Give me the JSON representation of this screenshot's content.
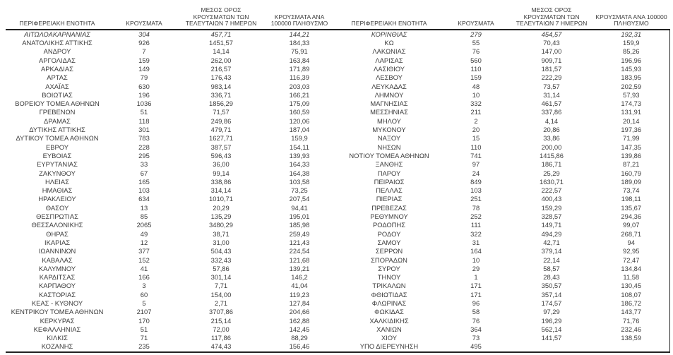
{
  "table": {
    "column_keys": [
      "region",
      "cases",
      "avg-7day",
      "per-100k"
    ],
    "column_headers": [
      "ΠΕΡΙΦΕΡΕΙΑΚΗ ΕΝΟΤΗΤΑ",
      "ΚΡΟΥΣΜΑΤΑ",
      "ΜΕΣΟΣ ΟΡΟΣ ΚΡΟΥΣΜΑΤΩΝ ΤΩΝ ΤΕΛΕΥΤΑΙΩΝ 7 ΗΜΕΡΩΝ",
      "ΚΡΟΥΣΜΑΤΑ ΑΝΑ 100000 ΠΛΗΘΥΣΜΟ"
    ],
    "left_rows": [
      [
        "ΑΙΤΩΛΟΑΚΑΡΝΑΝΙΑΣ",
        "304",
        "457,71",
        "144,21"
      ],
      [
        "ΑΝΑΤΟΛΙΚΗΣ ΑΤΤΙΚΗΣ",
        "926",
        "1451,57",
        "184,33"
      ],
      [
        "ΑΝΔΡΟΥ",
        "7",
        "14,14",
        "75,91"
      ],
      [
        "ΑΡΓΟΛΙΔΑΣ",
        "159",
        "262,00",
        "163,84"
      ],
      [
        "ΑΡΚΑΔΙΑΣ",
        "149",
        "216,57",
        "171,89"
      ],
      [
        "ΑΡΤΑΣ",
        "79",
        "176,43",
        "116,39"
      ],
      [
        "ΑΧΑΪΑΣ",
        "630",
        "983,14",
        "203,03"
      ],
      [
        "ΒΟΙΩΤΙΑΣ",
        "196",
        "336,71",
        "166,21"
      ],
      [
        "ΒΟΡΕΙΟΥ ΤΟΜΕΑ ΑΘΗΝΩΝ",
        "1036",
        "1856,29",
        "175,09"
      ],
      [
        "ΓΡΕΒΕΝΩΝ",
        "51",
        "71,57",
        "160,59"
      ],
      [
        "ΔΡΑΜΑΣ",
        "118",
        "249,86",
        "120,06"
      ],
      [
        "ΔΥΤΙΚΗΣ ΑΤΤΙΚΗΣ",
        "301",
        "479,71",
        "187,04"
      ],
      [
        "ΔΥΤΙΚΟΥ ΤΟΜΕΑ ΑΘΗΝΩΝ",
        "783",
        "1627,71",
        "159,9"
      ],
      [
        "ΕΒΡΟΥ",
        "228",
        "387,57",
        "154,11"
      ],
      [
        "ΕΥΒΟΙΑΣ",
        "295",
        "596,43",
        "139,93"
      ],
      [
        "ΕΥΡΥΤΑΝΙΑΣ",
        "33",
        "36,00",
        "164,33"
      ],
      [
        "ΖΑΚΥΝΘΟΥ",
        "67",
        "99,14",
        "164,38"
      ],
      [
        "ΗΛΕΙΑΣ",
        "165",
        "338,86",
        "103,58"
      ],
      [
        "ΗΜΑΘΙΑΣ",
        "103",
        "314,14",
        "73,25"
      ],
      [
        "ΗΡΑΚΛΕΙΟΥ",
        "634",
        "1010,71",
        "207,54"
      ],
      [
        "ΘΑΣΟΥ",
        "13",
        "20,29",
        "94,41"
      ],
      [
        "ΘΕΣΠΡΩΤΙΑΣ",
        "85",
        "135,29",
        "195,01"
      ],
      [
        "ΘΕΣΣΑΛΟΝΙΚΗΣ",
        "2065",
        "3480,29",
        "185,98"
      ],
      [
        "ΘΗΡΑΣ",
        "49",
        "38,71",
        "259,49"
      ],
      [
        "ΙΚΑΡΙΑΣ",
        "12",
        "31,00",
        "121,43"
      ],
      [
        "ΙΩΑΝΝΙΝΩΝ",
        "377",
        "504,43",
        "224,54"
      ],
      [
        "ΚΑΒΑΛΑΣ",
        "152",
        "332,43",
        "121,68"
      ],
      [
        "ΚΑΛΥΜΝΟΥ",
        "41",
        "57,86",
        "139,21"
      ],
      [
        "ΚΑΡΔΙΤΣΑΣ",
        "166",
        "301,14",
        "146,2"
      ],
      [
        "ΚΑΡΠΑΘΟΥ",
        "3",
        "7,71",
        "41,04"
      ],
      [
        "ΚΑΣΤΟΡΙΑΣ",
        "60",
        "154,00",
        "119,23"
      ],
      [
        "ΚΕΑΣ - ΚΥΘΝΟΥ",
        "5",
        "2,71",
        "127,84"
      ],
      [
        "ΚΕΝΤΡΙΚΟΥ ΤΟΜΕΑ ΑΘΗΝΩΝ",
        "2107",
        "3707,86",
        "204,66"
      ],
      [
        "ΚΕΡΚΥΡΑΣ",
        "170",
        "215,14",
        "162,88"
      ],
      [
        "ΚΕΦΑΛΛΗΝΙΑΣ",
        "51",
        "72,00",
        "142,45"
      ],
      [
        "ΚΙΛΚΙΣ",
        "71",
        "117,86",
        "88,29"
      ],
      [
        "ΚΟΖΑΝΗΣ",
        "235",
        "474,43",
        "156,46"
      ]
    ],
    "right_rows": [
      [
        "ΚΟΡΙΝΘΙΑΣ",
        "279",
        "454,57",
        "192,31"
      ],
      [
        "ΚΩ",
        "55",
        "70,43",
        "159,9"
      ],
      [
        "ΛΑΚΩΝΙΑΣ",
        "76",
        "147,00",
        "85,26"
      ],
      [
        "ΛΑΡΙΣΑΣ",
        "560",
        "909,71",
        "196,96"
      ],
      [
        "ΛΑΣΙΘΙΟΥ",
        "110",
        "181,57",
        "145,93"
      ],
      [
        "ΛΕΣΒΟΥ",
        "159",
        "222,29",
        "183,95"
      ],
      [
        "ΛΕΥΚΑΔΑΣ",
        "48",
        "73,57",
        "202,59"
      ],
      [
        "ΛΗΜΝΟΥ",
        "10",
        "31,14",
        "57,93"
      ],
      [
        "ΜΑΓΝΗΣΙΑΣ",
        "332",
        "461,57",
        "174,73"
      ],
      [
        "ΜΕΣΣΗΝΙΑΣ",
        "211",
        "337,86",
        "131,91"
      ],
      [
        "ΜΗΛΟΥ",
        "2",
        "4,14",
        "20,14"
      ],
      [
        "ΜΥΚΟΝΟΥ",
        "20",
        "20,86",
        "197,36"
      ],
      [
        "ΝΑΞΟΥ",
        "15",
        "33,86",
        "71,99"
      ],
      [
        "ΝΗΣΩΝ",
        "110",
        "200,00",
        "147,35"
      ],
      [
        "ΝΟΤΙΟΥ ΤΟΜΕΑ ΑΘΗΝΩΝ",
        "741",
        "1415,86",
        "139,86"
      ],
      [
        "ΞΑΝΘΗΣ",
        "97",
        "186,71",
        "87,21"
      ],
      [
        "ΠΑΡΟΥ",
        "24",
        "25,29",
        "160,79"
      ],
      [
        "ΠΕΙΡΑΙΩΣ",
        "849",
        "1630,71",
        "189,09"
      ],
      [
        "ΠΕΛΛΑΣ",
        "103",
        "222,57",
        "73,74"
      ],
      [
        "ΠΙΕΡΙΑΣ",
        "251",
        "400,43",
        "198,11"
      ],
      [
        "ΠΡΕΒΕΖΑΣ",
        "78",
        "159,29",
        "135,67"
      ],
      [
        "ΡΕΘΥΜΝΟΥ",
        "252",
        "328,57",
        "294,36"
      ],
      [
        "ΡΟΔΟΠΗΣ",
        "111",
        "149,71",
        "99,07"
      ],
      [
        "ΡΟΔΟΥ",
        "322",
        "494,29",
        "268,71"
      ],
      [
        "ΣΑΜΟΥ",
        "31",
        "42,71",
        "94"
      ],
      [
        "ΣΕΡΡΩΝ",
        "164",
        "379,14",
        "92,95"
      ],
      [
        "ΣΠΟΡΑΔΩΝ",
        "10",
        "22,14",
        "72,47"
      ],
      [
        "ΣΥΡΟΥ",
        "29",
        "58,57",
        "134,84"
      ],
      [
        "ΤΗΝΟΥ",
        "1",
        "28,43",
        "11,58"
      ],
      [
        "ΤΡΙΚΑΛΩΝ",
        "171",
        "350,57",
        "130,45"
      ],
      [
        "ΦΘΙΩΤΙΔΑΣ",
        "171",
        "357,14",
        "108,07"
      ],
      [
        "ΦΛΩΡΙΝΑΣ",
        "96",
        "174,57",
        "186,72"
      ],
      [
        "ΦΩΚΙΔΑΣ",
        "58",
        "97,29",
        "143,77"
      ],
      [
        "ΧΑΛΚΙΔΙΚΗΣ",
        "76",
        "196,29",
        "71,76"
      ],
      [
        "ΧΑΝΙΩΝ",
        "364",
        "562,14",
        "232,46"
      ],
      [
        "ΧΙΟΥ",
        "73",
        "141,57",
        "138,59"
      ],
      [
        "ΥΠΟ ΔΙΕΡΕΥΝΗΣΗ",
        "495",
        "",
        ""
      ]
    ]
  },
  "colors": {
    "text": "#3c3c3c",
    "rule": "#222222",
    "background": "#ffffff"
  }
}
